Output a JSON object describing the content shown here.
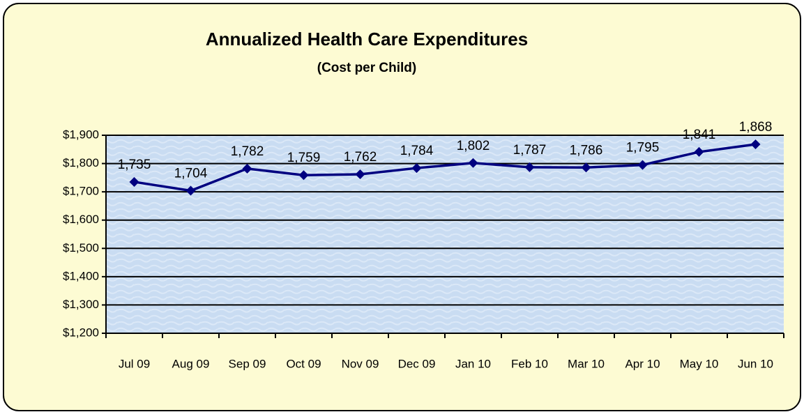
{
  "chart_data": {
    "type": "line",
    "title": "Annualized Health Care Expenditures",
    "subtitle": "(Cost per Child)",
    "categories": [
      "Jul 09",
      "Aug 09",
      "Sep 09",
      "Oct 09",
      "Nov 09",
      "Dec 09",
      "Jan 10",
      "Feb 10",
      "Mar 10",
      "Apr 10",
      "May 10",
      "Jun 10"
    ],
    "series": [
      {
        "name": "Cost per Child",
        "color": "#000080",
        "values": [
          1735,
          1704,
          1782,
          1759,
          1762,
          1784,
          1802,
          1787,
          1786,
          1795,
          1841,
          1868
        ],
        "value_labels": [
          "1,735",
          "1,704",
          "1,782",
          "1,759",
          "1,762",
          "1,784",
          "1,802",
          "1,787",
          "1,786",
          "1,795",
          "1,841",
          "1,868"
        ]
      }
    ],
    "ylim": [
      1200,
      1900
    ],
    "yticks": [
      {
        "value": 1200,
        "label": "$1,200"
      },
      {
        "value": 1300,
        "label": "$1,300"
      },
      {
        "value": 1400,
        "label": "$1,400"
      },
      {
        "value": 1500,
        "label": "$1,500"
      },
      {
        "value": 1600,
        "label": "$1,600"
      },
      {
        "value": 1700,
        "label": "$1,700"
      },
      {
        "value": 1800,
        "label": "$1,800"
      },
      {
        "value": 1900,
        "label": "$1,900"
      }
    ],
    "grid": true
  }
}
